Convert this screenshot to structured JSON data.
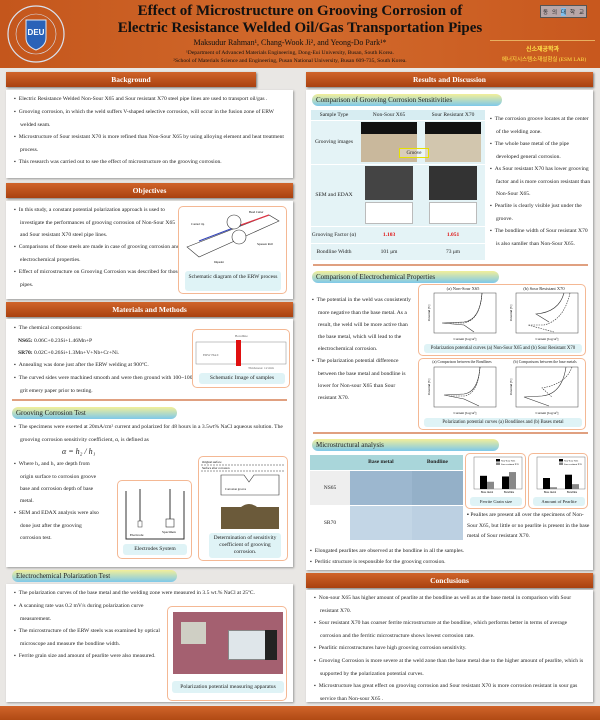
{
  "header": {
    "title_line1": "Effect of Microstructure on Grooving Corrosion of",
    "title_line2": "Electric Resistance Welded Oil/Gas Transportation Pipes",
    "authors": "Maksudur Rahman¹, Chang-Wook Ji², and Yeong-Do Park¹*",
    "affiliation1": "¹Department of Advanced Materials Engineering, Dong-Eui University, Busan, South Korea.",
    "affiliation2": "²School of Materials Science and Engineering, Pusan National University, Busan 609-735, South Korea.",
    "logo_text": "DONG-EUI UNIVERSITY",
    "university_chars": [
      "동",
      "의",
      "대",
      "학",
      "교"
    ],
    "dept": "신소재공학과",
    "lab": "에너지시스템소재설험실 (ESM LAB)"
  },
  "background": {
    "heading": "Background",
    "items": [
      "Electric Resistance Welded Non-Sour X65 and Sour resistant X70 steel pipe lines are used to transport oil/gas .",
      "Grooving corrosion, in which the weld suffers V-shaped selective corrosion, will occur in the fusion zone of ERW welded seam.",
      "Microstructure of Sour resistant X70 is more refined than Non-Sour X65 by using alloying element and heat treatment process.",
      "This research was carried out to see the effect of microstructure on the grooving corrosion."
    ]
  },
  "objectives": {
    "heading": "Objectives",
    "items": [
      "In this study, a constant potential polarization approach is used to investigate the performances of grooving corrosion of Non-Sour X65 and Sour resistant X70 steel pipe lines.",
      "Comparisons of those steels are made in case of grooving corrosion and electrochemical properties.",
      "Effect of microstructure on Grooving Corrosion was described for those pipes."
    ],
    "figure_caption": "Schematic diagram of the ERW process",
    "figure_labels": [
      "Bead Cutter",
      "Contact tip",
      "Squeeze Roll",
      "Impeder"
    ]
  },
  "methods": {
    "heading": "Materials and Methods",
    "items": [
      "The chemical compositions:",
      "Annealing was done just after the ERW welding at 900ºC.",
      "The curved sides were machined smooth and were then ground with 100~1000 grit emery paper prior to testing."
    ],
    "ns65_label": "NS65:",
    "ns65": "0.06C+0.23Si+1.46Mn+P",
    "sr70_label": "SR70:",
    "sr70": "0.02C+0.26Si+1.3Mn+V+Nb+Cr+Ni.",
    "sample_caption": "Schematic Image of samples",
    "sample_labels": {
      "bondline": "Bondline",
      "haz": "ERW HAZ",
      "thickness": "Thickness: 12 mm"
    },
    "groove_heading": "Grooving Corrosion Test",
    "groove_items": [
      "The specimens were exerted at 20mA/cm² current and polarized for 48 hours in a 3.5wt% NaCl aqueous solution. The grooving corrosion sensitivity coefficient, α, is defined as",
      "Where h₂ and h₁ are depth from origin surface to corrosion groove base and corrosion depth of base metal.",
      "SEM and EDAX analysis were also done just after the grooving corrosion test."
    ],
    "formula": "α = h₂ / h₁",
    "electrode_caption": "Electrodes System",
    "electrode_labels": [
      "Electrode",
      "Specimen"
    ],
    "sensitivity_caption": "Determination of sensitivity coefficient of grooving corrosion.",
    "sensitivity_labels": [
      "Original surface",
      "Surface after corrosion",
      "Corrosion groove"
    ],
    "polar_heading": "Electrochemical Polarization Test",
    "polar_items": [
      "The polarization curves of the base metal and the welding zone were measured in 3.5 wt.% NaCl at 25ºC.",
      "A scanning rate was 0.2 mV/s during polarization curve measurement.",
      "The microstructure of the ERW steels was examined by optical microscope and measure the bondline width.",
      "Ferrite grain size and amount of pearlite were also measured."
    ],
    "apparatus_caption": "Polarization potential measuring apparatus"
  },
  "results": {
    "heading": "Results and Discussion",
    "grooving": {
      "heading": "Comparison of Grooving Corrosion Sensitivities",
      "columns": [
        "Sample Type",
        "Non-Sour X65",
        "Sour Resistant X70"
      ],
      "row_labels": [
        "Grooving images",
        "SEM and EDAX",
        "Grooving Factor (α)",
        "Bondline Width"
      ],
      "groove_label": "Groove",
      "factor": [
        "1.103",
        "1.051"
      ],
      "width": [
        "101 μm",
        "73 μm"
      ],
      "items": [
        "The corrosion groove locates at the center of the welding zone.",
        "The whole base metal of the pipe developed general corrosion.",
        "As Sour resistant X70 has lower grooving factor and is more corrosion resistant than Non-Sour X65.",
        "Pearlite is clearly visible just under the groove.",
        "The bondline width of Sour resistant X70 is also samller than Non-Sour X65."
      ]
    },
    "electrochem": {
      "heading": "Comparison of Electrochemical Properties",
      "items": [
        "The potential in the weld was consistently more negative than the base metal. As a result, the weld will be more active than the base metal, which will lead to the electrochemical corrosion.",
        "The polarization potential difference between the base metal and bondline is lower for Non-sour X65 than Sour resistant X70."
      ],
      "plot_titles": [
        "(a) Non-Sour X65",
        "(b) Sour Resistant X70",
        "(a) Comparison between the Bondlines",
        "(b) Comparisons between the base metals"
      ],
      "caption1": "Polarization potential curves (a) Non-Sour X65 and (b) Sour Resistant X70",
      "caption2": "Polarization potential curves (a) Bondlines and (b) Bases metal",
      "xlabel": "Current [log/A²]",
      "ylabel": "Potential [V]"
    },
    "micro": {
      "heading": "Microstructural analysis",
      "columns": [
        "Base metal",
        "Bondline"
      ],
      "rows": [
        "NS65",
        "SR70"
      ],
      "chart_captions": [
        "Ferrite Grain size",
        "Amount of Pearlite"
      ],
      "chart_categories": [
        "Base metal",
        "Bondline"
      ],
      "legend": [
        "Non-Sour X65",
        "Sour resistant X70"
      ],
      "ferrite_values": {
        "Non-Sour X65": [
          60,
          57
        ],
        "Sour resistant X70": [
          33,
          77
        ]
      },
      "pearlite_values": {
        "Non-Sour X65": [
          50,
          65
        ],
        "Sour resistant X70": [
          8,
          22
        ]
      },
      "side_item": "Pealites are present all over the specimens of Non-Sour X65, but little or no pearlite is present in the base metal of Sour resistant X70.",
      "items": [
        "Elongated pearlites are observed at the bondline in all the samples.",
        "Perlitic structure is responsible for the grooving corrosion."
      ]
    }
  },
  "conclusions": {
    "heading": "Conclusions",
    "items": [
      "Non-sour X65 has higher amount of pearlite at the bondline as well as at the base metal in comparison with Sour resistant X70.",
      "Sour resistant X70 has coarser ferrite microstructure at the bondline, which performs better in terms of average corrosion and the ferritic microstructure shows lowest corrosion rate.",
      "Pearlitic microstructures have high grooving corrosion sensitivity.",
      "Grooving Corrosion is more severe at the weld zone than the base metal due to the higher amount of pearlite, which is supported by the polarization potential curves.",
      "Microstructure has great effect on grooving corrosion and Sour resistant X70 is more corrosion resistant in sour gas service than Non-sour X65 ."
    ]
  },
  "colors": {
    "header": "#c4561c",
    "bar": "#b84a16",
    "accent_red": "#e01010"
  }
}
